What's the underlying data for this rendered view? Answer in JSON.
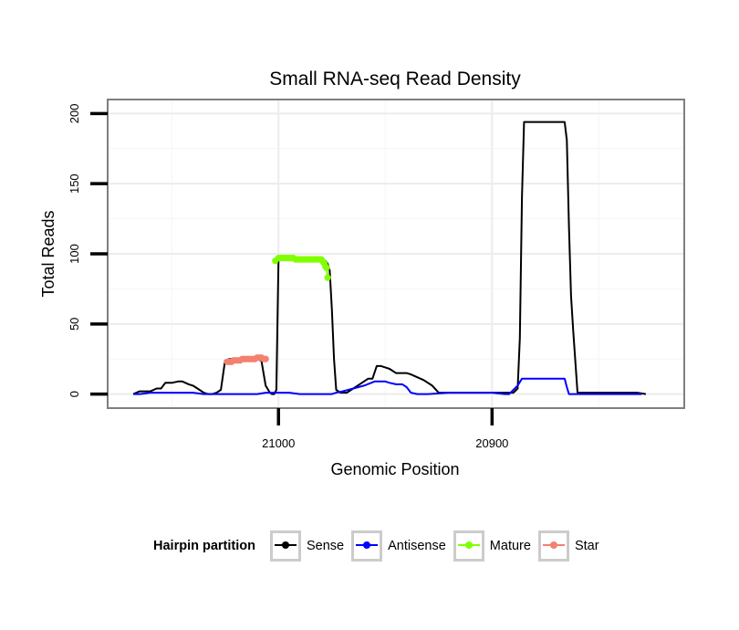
{
  "chart_data": {
    "type": "line",
    "title": "Small RNA-seq Read Density",
    "xlabel": "Genomic Position",
    "ylabel": "Total Reads",
    "xlim": [
      21080,
      20810
    ],
    "x_reversed": true,
    "ylim": [
      -10,
      210
    ],
    "x_ticks": [
      21000,
      20900
    ],
    "x_tick_labels": [
      "21000",
      "20900"
    ],
    "y_ticks": [
      0,
      50,
      100,
      150,
      200
    ],
    "y_tick_labels": [
      "0",
      "50",
      "100",
      "150",
      "200"
    ],
    "legend": {
      "title": "Hairpin partition",
      "position": "bottom",
      "entries": [
        {
          "label": "Sense",
          "color": "#000000"
        },
        {
          "label": "Antisense",
          "color": "#0000ff"
        },
        {
          "label": "Mature",
          "color": "#7fff00"
        },
        {
          "label": "Star",
          "color": "#f4806f"
        }
      ]
    },
    "series": [
      {
        "name": "Sense",
        "color": "#000000",
        "markers": false,
        "x": [
          21068,
          21065,
          21060,
          21057,
          21055,
          21053,
          21050,
          21047,
          21045,
          21042,
          21040,
          21037,
          21035,
          21033,
          21031,
          21029,
          21027,
          21025,
          21023,
          21020,
          21016,
          21014,
          21012,
          21011,
          21008,
          21006,
          21004,
          21003,
          21002,
          21001,
          21000,
          20998,
          20995,
          20990,
          20985,
          20980,
          20978,
          20977,
          20976,
          20975,
          20974,
          20973,
          20971,
          20968,
          20965,
          20962,
          20960,
          20958,
          20956,
          20954,
          20952,
          20950,
          20948,
          20945,
          20942,
          20940,
          20938,
          20935,
          20932,
          20928,
          20925,
          20920,
          20915,
          20910,
          20905,
          20900,
          20895,
          20890,
          20888,
          20887,
          20886,
          20885,
          20883,
          20880,
          20875,
          20870,
          20868,
          20867,
          20866,
          20865,
          20864,
          20863,
          20862,
          20860,
          20855,
          20850,
          20840,
          20832,
          20828
        ],
        "y": [
          0,
          2,
          2,
          4,
          4,
          8,
          8,
          9,
          9,
          7,
          6,
          3,
          1,
          0,
          0,
          1,
          3,
          24,
          25,
          25,
          26,
          26,
          26,
          25,
          24,
          6,
          1,
          0,
          0,
          3,
          97,
          97,
          97,
          97,
          96,
          96,
          95,
          93,
          88,
          60,
          25,
          3,
          1,
          1,
          4,
          7,
          9,
          11,
          11,
          20,
          20,
          19,
          18,
          15,
          15,
          15,
          14,
          12,
          10,
          6,
          1,
          1,
          1,
          1,
          1,
          1,
          1,
          1,
          4,
          40,
          140,
          194,
          194,
          194,
          194,
          194,
          194,
          194,
          194,
          181,
          120,
          70,
          45,
          1,
          1,
          1,
          1,
          1,
          0
        ]
      },
      {
        "name": "Antisense",
        "color": "#0000ff",
        "markers": false,
        "x": [
          21068,
          21065,
          21060,
          21050,
          21040,
          21035,
          21030,
          21020,
          21010,
          21006,
          21000,
          20995,
          20990,
          20985,
          20980,
          20975,
          20973,
          20970,
          20965,
          20960,
          20955,
          20950,
          20948,
          20945,
          20942,
          20940,
          20938,
          20935,
          20930,
          20920,
          20910,
          20900,
          20894,
          20892,
          20890,
          20888,
          20886,
          20880,
          20870,
          20866,
          20865,
          20864,
          20860,
          20850,
          20840,
          20830
        ],
        "y": [
          0,
          0,
          1,
          1,
          1,
          0,
          0,
          0,
          0,
          1,
          1,
          1,
          0,
          0,
          0,
          0,
          1,
          2,
          4,
          6,
          9,
          9,
          8,
          7,
          7,
          5,
          1,
          0,
          0,
          1,
          1,
          1,
          0,
          0,
          3,
          6,
          11,
          11,
          11,
          11,
          5,
          0,
          0,
          0,
          0,
          0
        ]
      },
      {
        "name": "Mature",
        "color": "#7fff00",
        "markers": true,
        "x": [
          21001.5,
          21000,
          20999,
          20998,
          20997,
          20996,
          20995,
          20994,
          20993,
          20992,
          20991,
          20990,
          20989,
          20988,
          20987,
          20986,
          20985,
          20984,
          20983,
          20982,
          20981,
          20980,
          20979.5,
          20979,
          20978.5,
          20978,
          20977.5,
          20977
        ],
        "y": [
          95,
          97,
          97,
          97,
          97,
          97,
          97,
          97,
          97,
          96,
          96,
          96,
          96,
          96,
          96,
          96,
          96,
          96,
          96,
          96,
          96,
          96,
          95,
          94,
          93,
          91,
          90,
          83
        ]
      },
      {
        "name": "Star",
        "color": "#f4806f",
        "markers": true,
        "x": [
          21024,
          21023,
          21022,
          21021,
          21020,
          21019,
          21018,
          21017,
          21016,
          21015,
          21014,
          21013,
          21012,
          21011,
          21010,
          21009,
          21008,
          21007,
          21006
        ],
        "y": [
          23,
          23,
          23,
          24,
          24,
          24,
          24,
          25,
          25,
          25,
          25,
          25,
          25,
          25,
          26,
          26,
          26,
          25,
          25
        ]
      }
    ]
  }
}
